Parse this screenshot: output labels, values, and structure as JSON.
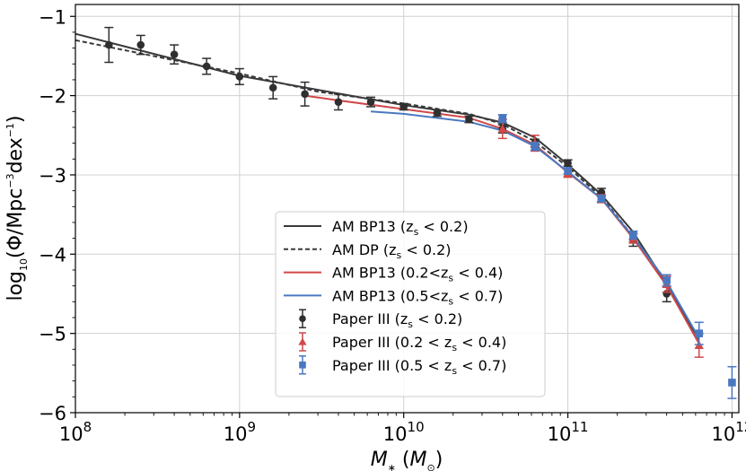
{
  "chart_data": {
    "type": "line",
    "xlabel": "M",
    "xlabel_parts": {
      "sym": "M",
      "sub": "∗",
      "unit_open": " (",
      "unit_sym": "M",
      "unit_sub": "⊙",
      "unit_close": ")"
    },
    "ylabel": "log10(Φ/Mpc−3dex−1)",
    "ylabel_parts": {
      "a": "log",
      "a_sub": "10",
      "b": "(Φ/Mpc",
      "b_sup": "−3",
      "c": "dex",
      "c_sup": "−1",
      "d": ")"
    },
    "x_scale": "log",
    "xlim": [
      100000000.0,
      1100000000000.0
    ],
    "ylim": [
      -6,
      -0.85
    ],
    "x_ticks": [
      100000000.0,
      1000000000.0,
      10000000000.0,
      100000000000.0,
      1000000000000.0
    ],
    "x_tick_labels": [
      {
        "base": "10",
        "exp": "8"
      },
      {
        "base": "10",
        "exp": "9"
      },
      {
        "base": "10",
        "exp": "10"
      },
      {
        "base": "10",
        "exp": "11"
      },
      {
        "base": "10",
        "exp": "12"
      }
    ],
    "y_ticks": [
      -6,
      -5,
      -4,
      -3,
      -2,
      -1
    ],
    "y_tick_labels": [
      "−6",
      "−5",
      "−4",
      "−3",
      "−2",
      "−1"
    ],
    "grid": true,
    "legend_position": "lower-right",
    "lines": [
      {
        "name": "AM BP13",
        "name_cond": "z_s < 0.2",
        "color": "#3a3a3a",
        "dash": "solid",
        "x": [
          100000000.0,
          1000000000.0,
          10000000000.0,
          25000000000.0,
          40000000000.0,
          63000000000.0,
          100000000000.0,
          160000000000.0,
          250000000000.0,
          400000000000.0,
          630000000000.0
        ],
        "y": [
          -1.22,
          -1.75,
          -2.12,
          -2.24,
          -2.34,
          -2.53,
          -2.87,
          -3.25,
          -3.72,
          -4.38,
          -5.08
        ]
      },
      {
        "name": "AM DP",
        "name_cond": "z_s < 0.2",
        "color": "#3a3a3a",
        "dash": "dashed",
        "x": [
          100000000.0,
          1000000000.0,
          3000000000.0,
          10000000000.0,
          25000000000.0,
          40000000000.0,
          63000000000.0,
          100000000000.0,
          160000000000.0,
          250000000000.0,
          400000000000.0
        ],
        "y": [
          -1.3,
          -1.72,
          -1.95,
          -2.1,
          -2.23,
          -2.36,
          -2.58,
          -2.9,
          -3.28,
          -3.78,
          -4.35
        ]
      },
      {
        "name": "AM BP13",
        "name_cond": "0.2<z_s < 0.4",
        "color": "#d04848",
        "dash": "solid",
        "x": [
          2500000000.0,
          4000000000.0,
          10000000000.0,
          25000000000.0,
          40000000000.0,
          63000000000.0,
          100000000000.0,
          160000000000.0,
          250000000000.0,
          400000000000.0,
          630000000000.0
        ],
        "y": [
          -2.0,
          -2.06,
          -2.17,
          -2.28,
          -2.42,
          -2.62,
          -2.97,
          -3.3,
          -3.8,
          -4.4,
          -5.13
        ]
      },
      {
        "name": "AM BP13",
        "name_cond": "0.5<z_s < 0.7",
        "color": "#4a78c0",
        "dash": "solid",
        "x": [
          6300000000.0,
          10000000000.0,
          25000000000.0,
          40000000000.0,
          63000000000.0,
          100000000000.0,
          160000000000.0,
          250000000000.0,
          400000000000.0,
          630000000000.0
        ],
        "y": [
          -2.2,
          -2.23,
          -2.33,
          -2.44,
          -2.64,
          -2.96,
          -3.3,
          -3.78,
          -4.35,
          -5.06
        ]
      }
    ],
    "points": [
      {
        "name": "Paper III",
        "name_cond": "z_s < 0.2",
        "color": "#2f2f2f",
        "marker": "circle",
        "x": [
          160000000.0,
          250000000.0,
          400000000.0,
          630000000.0,
          1000000000.0,
          1600000000.0,
          2500000000.0,
          4000000000.0,
          6300000000.0,
          10000000000.0,
          16000000000.0,
          25000000000.0,
          40000000000.0,
          63000000000.0,
          100000000000.0,
          160000000000.0,
          250000000000.0,
          400000000000.0
        ],
        "y": [
          -1.36,
          -1.36,
          -1.48,
          -1.63,
          -1.76,
          -1.9,
          -1.98,
          -2.08,
          -2.08,
          -2.14,
          -2.22,
          -2.3,
          -2.42,
          -2.6,
          -2.85,
          -3.22,
          -3.82,
          -4.5
        ],
        "err": [
          0.22,
          0.12,
          0.12,
          0.1,
          0.1,
          0.14,
          0.15,
          0.1,
          0.06,
          0.04,
          0.04,
          0.04,
          0.05,
          0.05,
          0.04,
          0.05,
          0.08,
          0.1
        ]
      },
      {
        "name": "Paper III",
        "name_cond": "0.2 < z_s < 0.4",
        "color": "#d04848",
        "marker": "triangle",
        "x": [
          40000000000.0,
          63000000000.0,
          100000000000.0,
          160000000000.0,
          250000000000.0,
          400000000000.0,
          630000000000.0
        ],
        "y": [
          -2.42,
          -2.6,
          -2.98,
          -3.3,
          -3.8,
          -4.38,
          -5.15
        ],
        "err": [
          0.12,
          0.1,
          0.05,
          0.05,
          0.06,
          0.1,
          0.15
        ]
      },
      {
        "name": "Paper III",
        "name_cond": "0.5 < z_s < 0.7",
        "color": "#4a78c0",
        "marker": "square",
        "x": [
          40000000000.0,
          63000000000.0,
          100000000000.0,
          160000000000.0,
          250000000000.0,
          400000000000.0,
          630000000000.0,
          1000000000000.0
        ],
        "y": [
          -2.29,
          -2.64,
          -2.95,
          -3.3,
          -3.76,
          -4.33,
          -5.0,
          -5.62
        ],
        "err": [
          0.05,
          0.05,
          0.04,
          0.04,
          0.05,
          0.07,
          0.14,
          0.2
        ]
      }
    ]
  }
}
